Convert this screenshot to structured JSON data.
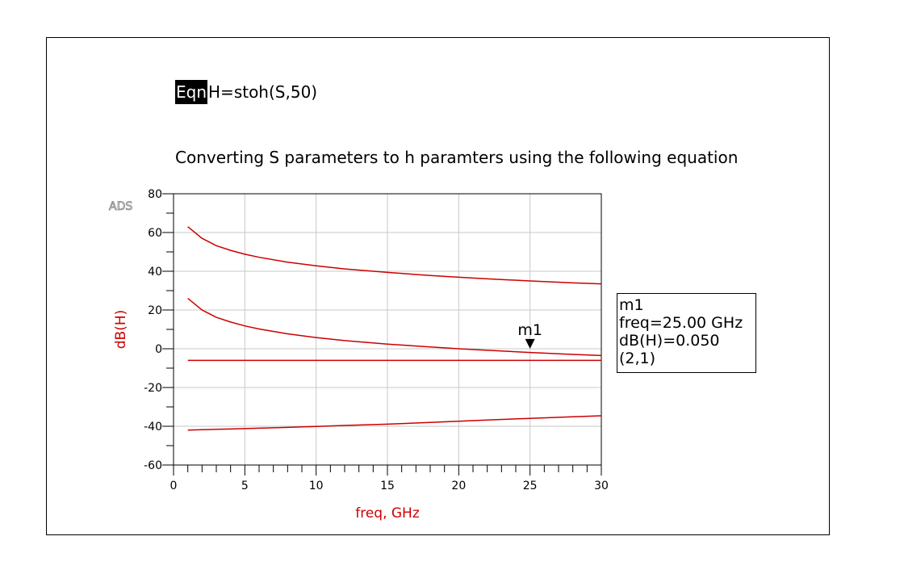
{
  "equation": {
    "tag": "Eqn",
    "text": "H=stoh(S,50)"
  },
  "watermark": "ADS",
  "chart_data": {
    "type": "line",
    "title": "Converting S parameters to h paramters using the following equation",
    "xlabel": "freq, GHz",
    "ylabel": "dB(H)",
    "xlim": [
      0,
      30
    ],
    "ylim": [
      -60,
      80
    ],
    "xticks": [
      0,
      5,
      10,
      15,
      20,
      25,
      30
    ],
    "yticks": [
      80,
      60,
      40,
      20,
      0,
      -20,
      -40,
      -60
    ],
    "grid": true,
    "line_color": "#cc0000",
    "x": [
      1,
      2,
      3,
      4,
      5,
      6,
      8,
      10,
      12,
      15,
      18,
      20,
      22,
      25,
      28,
      30
    ],
    "series": [
      {
        "values": [
          63,
          57,
          53.2,
          50.8,
          48.8,
          47.2,
          44.7,
          42.8,
          41.2,
          39.4,
          37.8,
          36.9,
          36.1,
          35,
          34,
          33.5
        ]
      },
      {
        "values": [
          26,
          20,
          16.2,
          13.8,
          11.8,
          10.2,
          7.7,
          5.8,
          4.2,
          2.4,
          0.9,
          0,
          -0.8,
          -1.9,
          -2.9,
          -3.5
        ]
      },
      {
        "values": [
          -6,
          -6,
          -6,
          -6,
          -6,
          -6,
          -6,
          -6,
          -6,
          -6,
          -6,
          -6,
          -6,
          -6,
          -6,
          -6
        ]
      },
      {
        "values": [
          -42,
          -41.8,
          -41.6,
          -41.4,
          -41.2,
          -41,
          -40.6,
          -40.1,
          -39.6,
          -38.9,
          -38,
          -37.4,
          -36.8,
          -35.9,
          -35.1,
          -34.6
        ]
      }
    ],
    "marker": {
      "label": "m1",
      "x": 25,
      "y": 0.05,
      "lines": [
        "m1",
        "freq=25.00 GHz",
        "dB(H)=0.050",
        "(2,1)"
      ]
    }
  }
}
